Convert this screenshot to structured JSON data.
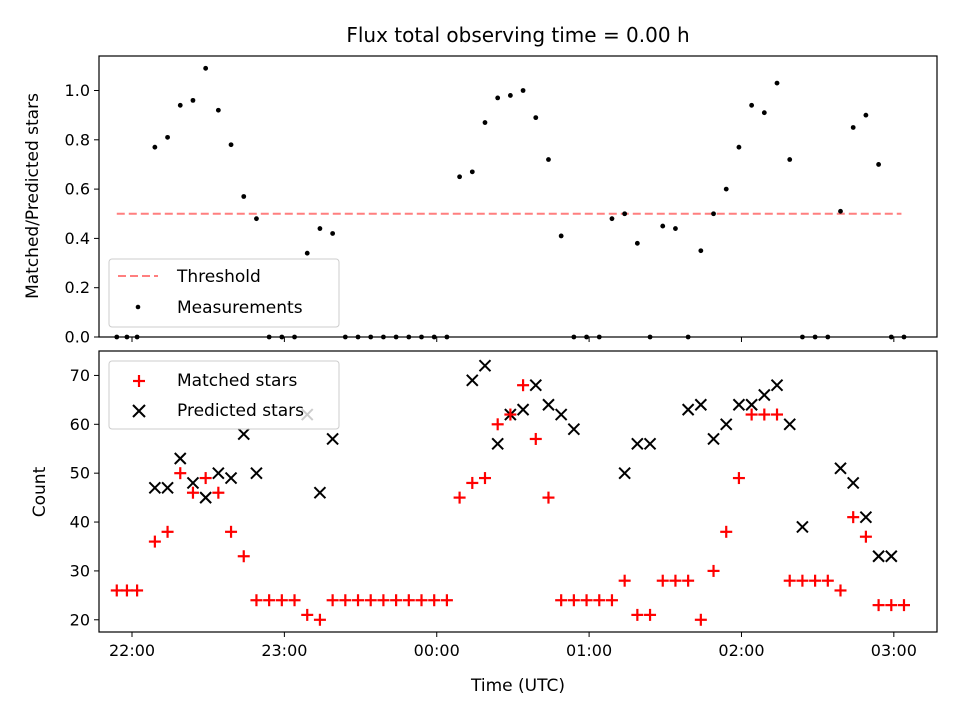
{
  "chart_data": [
    {
      "type": "scatter",
      "title": "Flux total observing time = 0.00 h",
      "xlabel": "",
      "ylabel": "Matched/Predicted stars",
      "ylim": [
        0,
        1.14
      ],
      "xlim": [
        "21:47",
        "03:17"
      ],
      "yticks": [
        "0.0",
        "0.2",
        "0.4",
        "0.6",
        "0.8",
        "1.0"
      ],
      "legend": {
        "placement": "lower-left",
        "entries": [
          {
            "label": "Threshold",
            "style": "dashed-line",
            "color": "#ff7f7f"
          },
          {
            "label": "Measurements",
            "style": "dot",
            "color": "#000000"
          }
        ]
      },
      "threshold": {
        "value": 0.5,
        "x_start": "21:54",
        "x_end": "03:03",
        "color": "#ff7f7f"
      },
      "series": [
        {
          "marker": "dot",
          "color": "#000000",
          "x": [
            "21:54",
            "21:58",
            "22:02",
            "22:09",
            "22:14",
            "22:19",
            "22:24",
            "22:29",
            "22:34",
            "22:39",
            "22:44",
            "22:49",
            "22:54",
            "22:59",
            "23:04",
            "23:09",
            "23:14",
            "23:19",
            "23:24",
            "23:29",
            "23:34",
            "23:39",
            "23:44",
            "23:49",
            "23:54",
            "23:59",
            "00:04",
            "00:09",
            "00:14",
            "00:19",
            "00:24",
            "00:29",
            "00:34",
            "00:39",
            "00:44",
            "00:49",
            "00:54",
            "00:59",
            "01:04",
            "01:09",
            "01:14",
            "01:19",
            "01:24",
            "01:29",
            "01:34",
            "01:39",
            "01:44",
            "01:49",
            "01:54",
            "01:59",
            "02:04",
            "02:09",
            "02:14",
            "02:19",
            "02:24",
            "02:29",
            "02:34",
            "02:39",
            "02:44",
            "02:49",
            "02:54",
            "02:59",
            "03:04"
          ],
          "y": [
            0,
            0,
            0,
            0.77,
            0.81,
            0.94,
            0.96,
            1.09,
            0.92,
            0.78,
            0.57,
            0.48,
            0,
            0,
            0,
            0.34,
            0.44,
            0.42,
            0,
            0,
            0,
            0,
            0,
            0,
            0,
            0,
            0,
            0.65,
            0.67,
            0.87,
            0.97,
            0.98,
            1.0,
            0.89,
            0.72,
            0.41,
            0,
            0,
            0,
            0.48,
            0.5,
            0.38,
            0,
            0.45,
            0.44,
            0,
            0.35,
            0.5,
            0.6,
            0.77,
            0.94,
            0.91,
            1.03,
            0.72,
            0,
            0,
            0,
            0.51,
            0.85,
            0.9,
            0.7,
            0,
            0
          ]
        }
      ]
    },
    {
      "type": "scatter",
      "title": "",
      "xlabel": "Time (UTC)",
      "ylabel": "Count",
      "ylim": [
        17.5,
        75
      ],
      "xlim": [
        "21:47",
        "03:17"
      ],
      "xticks": [
        "22:00",
        "23:00",
        "00:00",
        "01:00",
        "02:00",
        "03:00"
      ],
      "yticks": [
        "20",
        "30",
        "40",
        "50",
        "60",
        "70"
      ],
      "legend": {
        "placement": "top-left",
        "entries": [
          {
            "label": "Matched stars",
            "style": "plus",
            "color": "#ff0000"
          },
          {
            "label": "Predicted stars",
            "style": "x",
            "color": "#000000"
          }
        ]
      },
      "series": [
        {
          "name": "Matched stars",
          "marker": "plus",
          "color": "#ff0000",
          "x": [
            "21:54",
            "21:58",
            "22:02",
            "22:09",
            "22:14",
            "22:19",
            "22:24",
            "22:29",
            "22:34",
            "22:39",
            "22:44",
            "22:49",
            "22:54",
            "22:59",
            "23:04",
            "23:09",
            "23:14",
            "23:19",
            "23:24",
            "23:29",
            "23:34",
            "23:39",
            "23:44",
            "23:49",
            "23:54",
            "23:59",
            "00:04",
            "00:09",
            "00:14",
            "00:19",
            "00:24",
            "00:29",
            "00:34",
            "00:39",
            "00:44",
            "00:49",
            "00:54",
            "00:59",
            "01:04",
            "01:09",
            "01:14",
            "01:19",
            "01:24",
            "01:29",
            "01:34",
            "01:39",
            "01:44",
            "01:49",
            "01:54",
            "01:59",
            "02:04",
            "02:09",
            "02:14",
            "02:19",
            "02:24",
            "02:29",
            "02:34",
            "02:39",
            "02:44",
            "02:49",
            "02:54",
            "02:59",
            "03:04"
          ],
          "y": [
            26,
            26,
            26,
            36,
            38,
            50,
            46,
            49,
            46,
            38,
            33,
            24,
            24,
            24,
            24,
            21,
            20,
            24,
            24,
            24,
            24,
            24,
            24,
            24,
            24,
            24,
            24,
            45,
            48,
            49,
            60,
            62,
            68,
            57,
            45,
            24,
            24,
            24,
            24,
            24,
            28,
            21,
            21,
            28,
            28,
            28,
            20,
            30,
            38,
            49,
            62,
            62,
            62,
            28,
            28,
            28,
            28,
            26,
            41,
            37,
            23,
            23,
            23
          ]
        },
        {
          "name": "Predicted stars",
          "marker": "x",
          "color": "#000000",
          "x": [
            "22:09",
            "22:14",
            "22:19",
            "22:24",
            "22:29",
            "22:34",
            "22:39",
            "22:44",
            "22:49",
            "23:09",
            "23:14",
            "23:19",
            "00:14",
            "00:19",
            "00:24",
            "00:29",
            "00:34",
            "00:39",
            "00:44",
            "00:49",
            "00:54",
            "01:14",
            "01:19",
            "01:24",
            "01:39",
            "01:44",
            "01:49",
            "01:54",
            "01:59",
            "02:04",
            "02:09",
            "02:14",
            "02:19",
            "02:24",
            "02:39",
            "02:44",
            "02:49",
            "02:54",
            "02:59"
          ],
          "y": [
            47,
            47,
            53,
            48,
            45,
            50,
            49,
            58,
            50,
            62,
            46,
            57,
            69,
            72,
            56,
            62,
            63,
            68,
            64,
            62,
            59,
            50,
            56,
            56,
            63,
            64,
            57,
            60,
            64,
            64,
            66,
            68,
            60,
            39,
            51,
            48,
            41,
            33,
            33
          ]
        }
      ]
    }
  ]
}
